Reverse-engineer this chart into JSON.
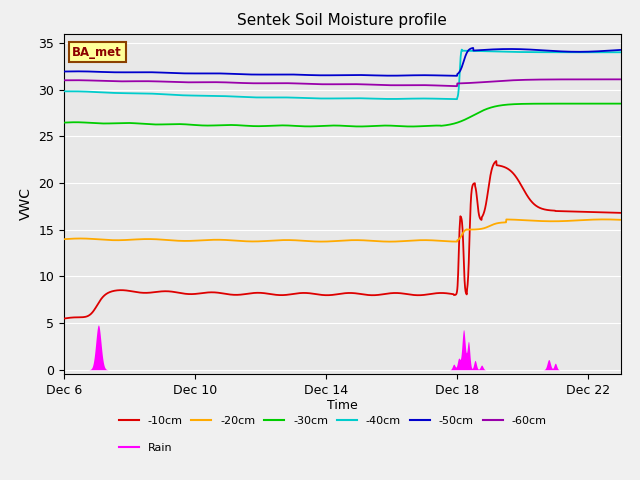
{
  "title": "Sentek Soil Moisture profile",
  "xlabel": "Time",
  "ylabel": "VWC",
  "legend_label": "BA_met",
  "ylim": [
    -0.5,
    36
  ],
  "background_color": "#f0f0f0",
  "plot_bg_color": "#e8e8e8",
  "series_colors": {
    "-10cm": "#dd0000",
    "-20cm": "#ffaa00",
    "-30cm": "#00cc00",
    "-40cm": "#00cccc",
    "-50cm": "#0000cc",
    "-60cm": "#9900aa",
    "Rain": "#ff00ff"
  },
  "x_ticks_pos": [
    0,
    4,
    8,
    12,
    16
  ],
  "x_tick_labels": [
    "Dec 6",
    "Dec 10",
    "Dec 14",
    "Dec 18",
    "Dec 22"
  ],
  "y_ticks": [
    0,
    5,
    10,
    15,
    20,
    25,
    30,
    35
  ],
  "grid_color": "#ffffff",
  "xlim": [
    0,
    17
  ]
}
